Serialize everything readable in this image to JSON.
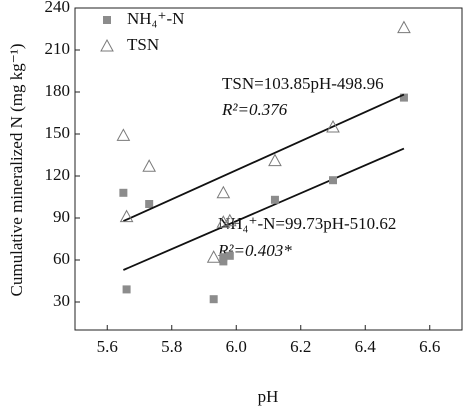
{
  "chart_data": {
    "type": "scatter",
    "xlabel": "pH",
    "ylabel": "Cumulative mineralized N (mg kg⁻¹)",
    "xlim": [
      5.5,
      6.7
    ],
    "xticks": [
      5.6,
      5.8,
      {
        "value": 6.0,
        "label": "6.0"
      },
      6.2,
      6.4,
      6.6
    ],
    "ylim": [
      10,
      240
    ],
    "yticks": [
      30,
      60,
      90,
      120,
      150,
      180,
      210,
      240
    ],
    "legend": "top-left",
    "series": [
      {
        "name": "NH₄⁺-N",
        "marker": "square",
        "color": "#8c8c8c",
        "x": [
          5.65,
          5.66,
          5.73,
          5.93,
          5.96,
          5.96,
          5.98,
          6.12,
          6.3,
          6.52
        ],
        "values": [
          108,
          39,
          100,
          32,
          59,
          62,
          63,
          103,
          117,
          176
        ],
        "fit": {
          "slope": 99.73,
          "intercept": -510.62,
          "equation": "NH₄⁺-N=99.73pH-510.62",
          "r2": "R²=0.403*"
        }
      },
      {
        "name": "TSN",
        "marker": "triangle",
        "color": "#7a7a7a",
        "x": [
          5.65,
          5.66,
          5.73,
          5.93,
          5.96,
          5.96,
          5.98,
          6.12,
          6.3,
          6.52
        ],
        "values": [
          149,
          91,
          127,
          62,
          108,
          87,
          88,
          131,
          155,
          226
        ],
        "fit": {
          "slope": 103.85,
          "intercept": -498.96,
          "equation": "TSN=103.85pH-498.96",
          "r2": "R²=0.376"
        }
      }
    ]
  }
}
